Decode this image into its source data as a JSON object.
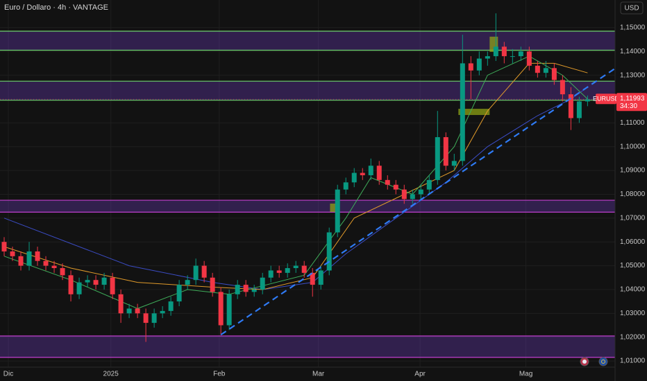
{
  "chart_data": {
    "type": "candlestick",
    "title": "Euro / Dollaro · 4h · VANTAGE",
    "currency": "USD",
    "symbol": "EURUSD",
    "last_price": {
      "value": 1.11993,
      "label": "1,11993"
    },
    "countdown": "34:30",
    "up_color": "#089981",
    "down_color": "#f23645",
    "open": [
      1.06,
      1.056,
      1.054,
      1.05,
      1.056,
      1.052,
      1.05,
      1.049,
      1.046,
      1.038,
      1.043,
      1.044,
      1.042,
      1.045,
      1.038,
      1.03,
      1.032,
      1.03,
      1.026,
      1.03,
      1.031,
      1.035,
      1.042,
      1.044,
      1.05,
      1.045,
      1.039,
      1.025,
      1.038,
      1.042,
      1.039,
      1.04,
      1.045,
      1.048,
      1.047,
      1.049,
      1.05,
      1.047,
      1.042,
      1.048,
      1.064,
      1.082,
      1.085,
      1.089,
      1.088,
      1.092,
      1.086,
      1.084,
      1.082,
      1.078,
      1.08,
      1.082,
      1.086,
      1.104,
      1.092,
      1.094,
      1.135,
      1.132,
      1.137,
      1.138,
      1.142,
      1.138,
      1.138,
      1.14,
      1.134,
      1.131,
      1.133,
      1.128,
      1.122,
      1.112,
      1.119
    ],
    "high": [
      1.062,
      1.058,
      1.056,
      1.06,
      1.058,
      1.054,
      1.052,
      1.051,
      1.048,
      1.045,
      1.046,
      1.046,
      1.047,
      1.047,
      1.04,
      1.034,
      1.034,
      1.032,
      1.032,
      1.033,
      1.037,
      1.044,
      1.046,
      1.053,
      1.052,
      1.047,
      1.041,
      1.04,
      1.044,
      1.044,
      1.042,
      1.047,
      1.05,
      1.05,
      1.051,
      1.052,
      1.052,
      1.049,
      1.05,
      1.066,
      1.084,
      1.087,
      1.091,
      1.091,
      1.095,
      1.094,
      1.088,
      1.086,
      1.084,
      1.082,
      1.084,
      1.088,
      1.115,
      1.106,
      1.097,
      1.147,
      1.138,
      1.14,
      1.14,
      1.156,
      1.144,
      1.141,
      1.142,
      1.142,
      1.136,
      1.136,
      1.135,
      1.13,
      1.125,
      1.121,
      1.1215
    ],
    "low": [
      1.054,
      1.052,
      1.048,
      1.048,
      1.05,
      1.048,
      1.047,
      1.044,
      1.035,
      1.036,
      1.041,
      1.04,
      1.04,
      1.036,
      1.026,
      1.028,
      1.028,
      1.018,
      1.024,
      1.028,
      1.029,
      1.033,
      1.04,
      1.042,
      1.043,
      1.037,
      1.021,
      1.023,
      1.036,
      1.037,
      1.037,
      1.038,
      1.043,
      1.045,
      1.045,
      1.047,
      1.045,
      1.037,
      1.04,
      1.046,
      1.062,
      1.08,
      1.083,
      1.086,
      1.086,
      1.084,
      1.082,
      1.08,
      1.076,
      1.076,
      1.078,
      1.08,
      1.084,
      1.09,
      1.09,
      1.092,
      1.12,
      1.13,
      1.134,
      1.136,
      1.135,
      1.135,
      1.136,
      1.132,
      1.129,
      1.129,
      1.126,
      1.119,
      1.107,
      1.11,
      1.117
    ],
    "close": [
      1.056,
      1.054,
      1.05,
      1.056,
      1.052,
      1.05,
      1.049,
      1.046,
      1.038,
      1.043,
      1.044,
      1.042,
      1.045,
      1.038,
      1.03,
      1.032,
      1.03,
      1.026,
      1.03,
      1.031,
      1.035,
      1.042,
      1.044,
      1.05,
      1.045,
      1.039,
      1.025,
      1.038,
      1.042,
      1.039,
      1.04,
      1.045,
      1.048,
      1.047,
      1.049,
      1.05,
      1.047,
      1.042,
      1.048,
      1.064,
      1.082,
      1.085,
      1.089,
      1.088,
      1.092,
      1.086,
      1.084,
      1.082,
      1.078,
      1.08,
      1.082,
      1.086,
      1.104,
      1.092,
      1.094,
      1.135,
      1.132,
      1.137,
      1.138,
      1.142,
      1.138,
      1.138,
      1.14,
      1.134,
      1.131,
      1.133,
      1.128,
      1.122,
      1.112,
      1.119,
      1.1199
    ],
    "xlim": [
      -0.5,
      73.3
    ],
    "xticks": [
      {
        "value": 0.5,
        "label": "Dic"
      },
      {
        "value": 12.8,
        "label": "2025"
      },
      {
        "value": 25.8,
        "label": "Feb"
      },
      {
        "value": 37.7,
        "label": "Mar"
      },
      {
        "value": 49.9,
        "label": "Apr"
      },
      {
        "value": 62.6,
        "label": "Mag"
      }
    ],
    "ylim": [
      1.0074,
      1.1616
    ],
    "yticks": [
      {
        "value": 1.01,
        "label": "1,01000"
      },
      {
        "value": 1.02,
        "label": "1,02000"
      },
      {
        "value": 1.03,
        "label": "1,03000"
      },
      {
        "value": 1.04,
        "label": "1,04000"
      },
      {
        "value": 1.05,
        "label": "1,05000"
      },
      {
        "value": 1.06,
        "label": "1,06000"
      },
      {
        "value": 1.07,
        "label": "1,07000"
      },
      {
        "value": 1.08,
        "label": "1,08000"
      },
      {
        "value": 1.09,
        "label": "1,09000"
      },
      {
        "value": 1.1,
        "label": "1,10000"
      },
      {
        "value": 1.11,
        "label": "1,11000"
      },
      {
        "value": 1.12,
        "label": "1,12000"
      },
      {
        "value": 1.13,
        "label": "1,13000"
      },
      {
        "value": 1.14,
        "label": "1,14000"
      },
      {
        "value": 1.15,
        "label": "1,15000"
      }
    ],
    "grid": true,
    "zones": [
      {
        "top": 1.1485,
        "bottom": 1.1405,
        "color": "#6fd36f"
      },
      {
        "top": 1.1275,
        "bottom": 1.1195,
        "color": "#6fd36f"
      },
      {
        "top": 1.0775,
        "bottom": 1.0725,
        "color": "#c23fd0"
      },
      {
        "top": 1.0205,
        "bottom": 1.0115,
        "color": "#c23fd0"
      }
    ],
    "boxes": [
      {
        "x": [
          54.5,
          58.25
        ],
        "y": [
          1.1159,
          1.1133
        ]
      },
      {
        "x": [
          39.1,
          40.2
        ],
        "y": [
          1.0761,
          1.0726
        ]
      },
      {
        "x": [
          58.25,
          59.25
        ],
        "y": [
          1.1462,
          1.1398
        ]
      }
    ],
    "trendline": {
      "x": [
        26,
        74
      ],
      "y": [
        1.021,
        1.1345
      ],
      "color": "#2f7bf5"
    },
    "moving_averages": [
      {
        "color": "#3b4cc4",
        "x": [
          0,
          15,
          25,
          31,
          37,
          41,
          49,
          53,
          58,
          64,
          68,
          70
        ],
        "y": [
          1.07,
          1.05,
          1.043,
          1.04,
          1.043,
          1.055,
          1.075,
          1.085,
          1.1,
          1.113,
          1.12,
          1.125
        ]
      },
      {
        "color": "#e09a2a",
        "x": [
          0,
          8,
          16,
          25,
          31,
          37,
          42,
          48,
          54,
          58,
          63,
          66,
          70
        ],
        "y": [
          1.058,
          1.049,
          1.043,
          1.041,
          1.04,
          1.045,
          1.07,
          1.08,
          1.09,
          1.115,
          1.135,
          1.135,
          1.131
        ]
      },
      {
        "color": "#3fae5a",
        "x": [
          0,
          8,
          16,
          22,
          27,
          36,
          41,
          44,
          49,
          54,
          58,
          63,
          67,
          70
        ],
        "y": [
          1.054,
          1.044,
          1.032,
          1.04,
          1.038,
          1.046,
          1.07,
          1.087,
          1.08,
          1.1,
          1.13,
          1.138,
          1.13,
          1.12
        ]
      }
    ]
  }
}
